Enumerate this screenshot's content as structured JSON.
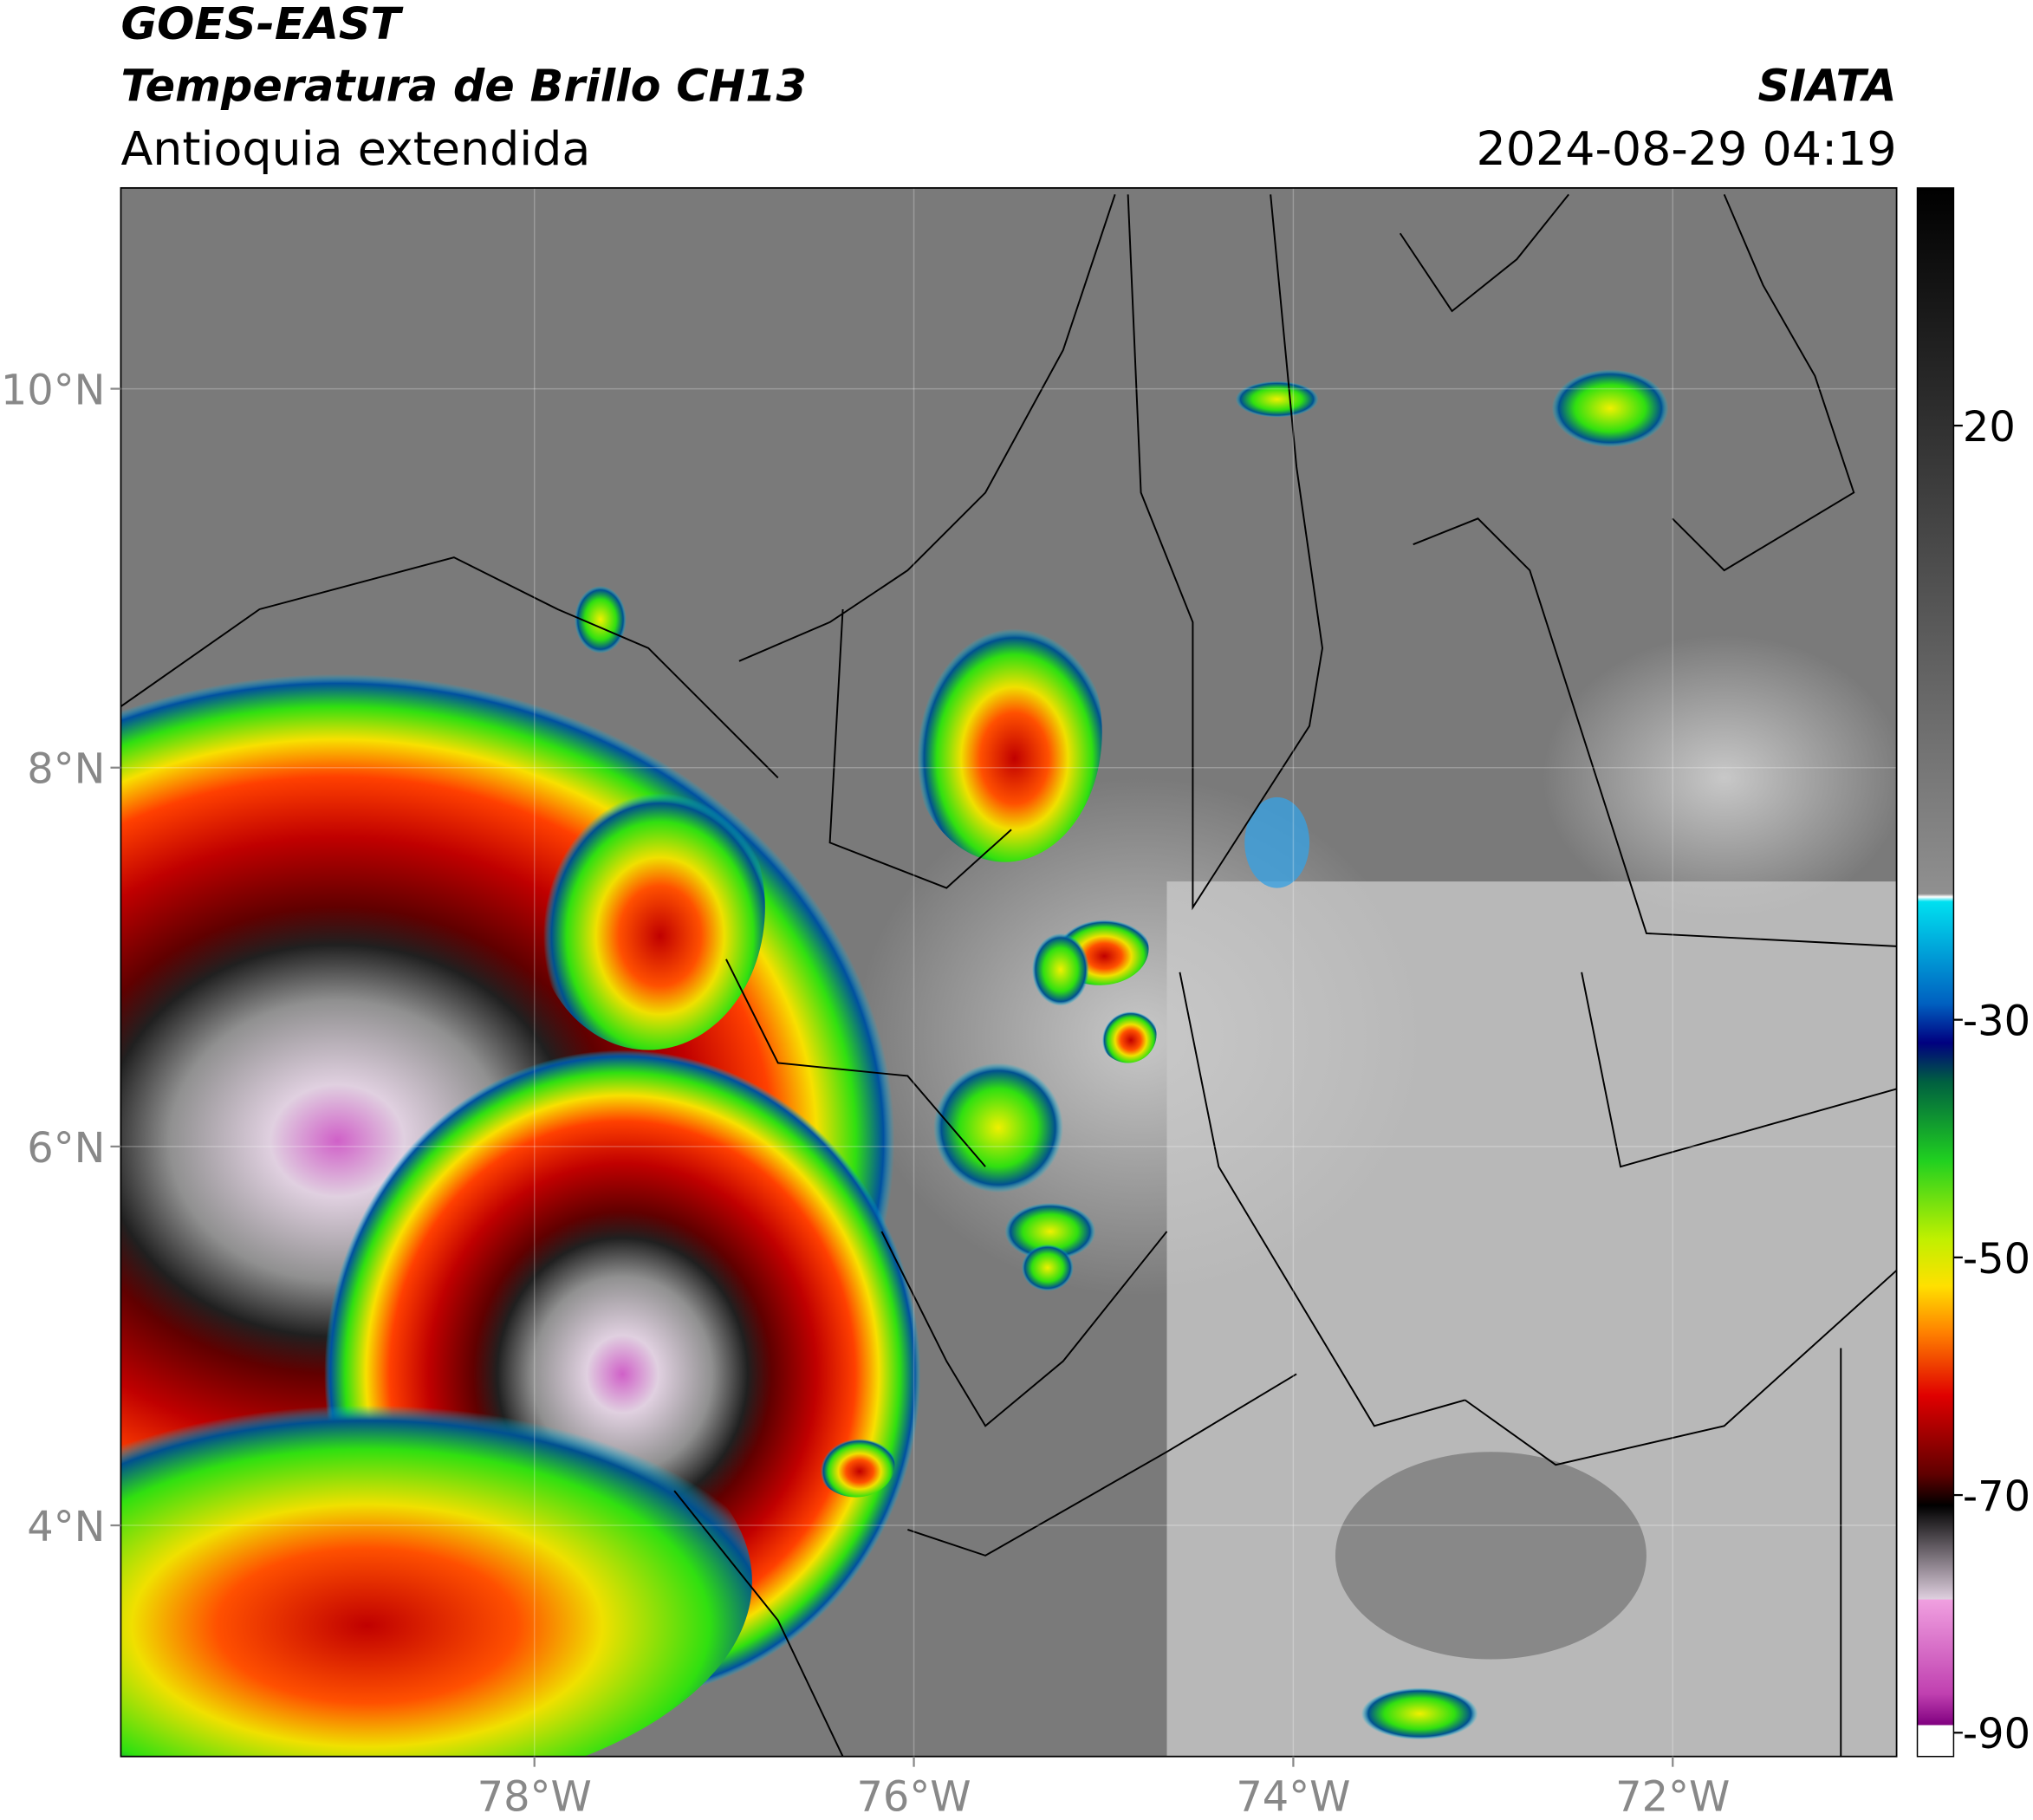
{
  "header": {
    "title": "GOES-EAST",
    "subtitle": "Temperatura de Brillo CH13",
    "region": "Antioquia extendida",
    "source": "SIATA",
    "datetime": "2024-08-29 04:19"
  },
  "map": {
    "xlim": [
      -80.18,
      -70.82
    ],
    "ylim": [
      2.78,
      11.06
    ],
    "grid": true,
    "xticks": [
      {
        "value": -78,
        "label": "78°W"
      },
      {
        "value": -76,
        "label": "76°W"
      },
      {
        "value": -74,
        "label": "74°W"
      },
      {
        "value": -72,
        "label": "72°W"
      }
    ],
    "yticks": [
      {
        "value": 4,
        "label": "4°N"
      },
      {
        "value": 6,
        "label": "6°N"
      },
      {
        "value": 8,
        "label": "8°N"
      },
      {
        "value": 10,
        "label": "10°N"
      }
    ]
  },
  "colorbar": {
    "lim": [
      -92,
      40
    ],
    "ticks": [
      20,
      -30,
      -50,
      -70,
      -90
    ]
  }
}
